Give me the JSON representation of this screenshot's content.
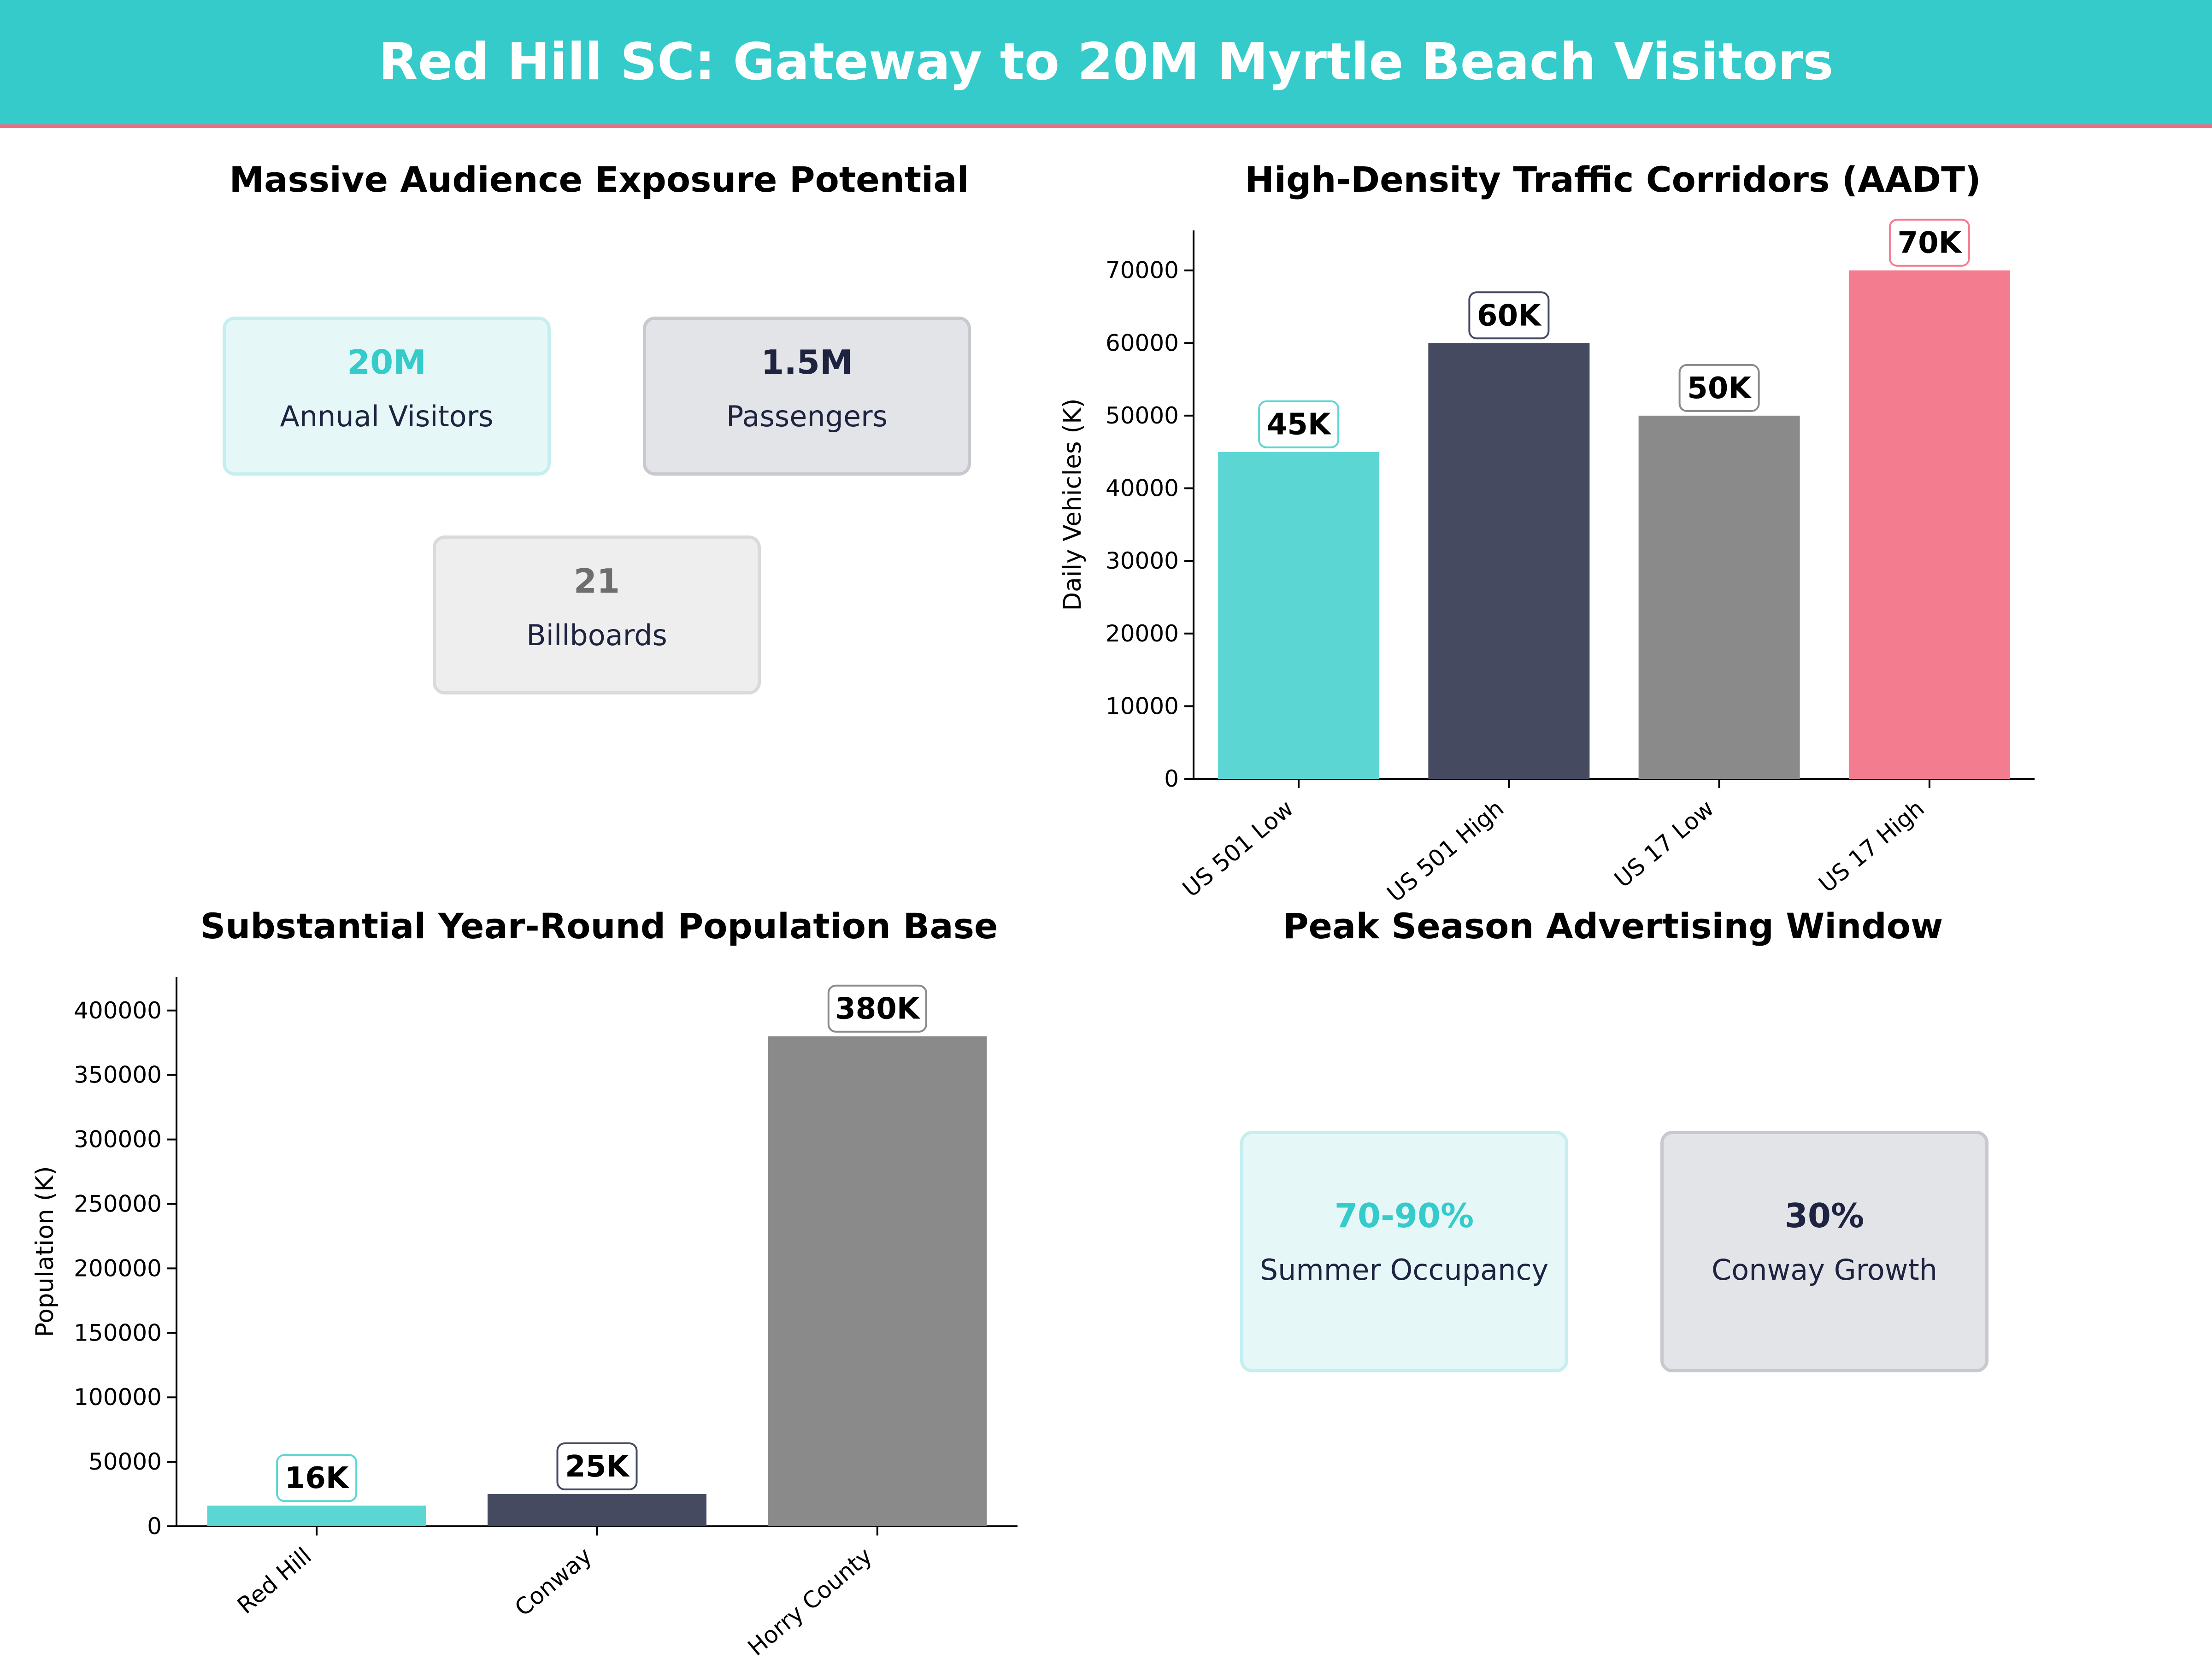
{
  "header": {
    "title": "Red Hill SC: Gateway to 20M Myrtle Beach Visitors"
  },
  "colors": {
    "header_bg": "#35cbcb",
    "header_accent": "#f06a82",
    "teal": "#5bd6d3",
    "navy": "#454a60",
    "gray": "#8a8a8a",
    "pink": "#f47c8f"
  },
  "panels": {
    "exposure": {
      "title": "Massive Audience Exposure Potential",
      "cards": [
        {
          "value": "20M",
          "label": "Annual Visitors",
          "color": "#35cbcb"
        },
        {
          "value": "1.5M",
          "label": "Passengers",
          "color": "#1e2340"
        },
        {
          "value": "21",
          "label": "Billboards",
          "color": "#6e6e6e"
        }
      ]
    },
    "traffic": {
      "title": "High-Density Traffic Corridors (AADT)"
    },
    "population": {
      "title": "Substantial Year-Round Population Base"
    },
    "season": {
      "title": "Peak Season Advertising Window",
      "cards": [
        {
          "value": "70-90%",
          "label": "Summer Occupancy",
          "color": "#35cbcb"
        },
        {
          "value": "30%",
          "label": "Conway Growth",
          "color": "#1e2340"
        }
      ]
    }
  },
  "chart_data": [
    {
      "type": "bar",
      "title": "High-Density Traffic Corridors (AADT)",
      "categories": [
        "US 501 Low",
        "US 501 High",
        "US 17 Low",
        "US 17 High"
      ],
      "values": [
        45000,
        60000,
        50000,
        70000
      ],
      "data_labels": [
        "45K",
        "60K",
        "50K",
        "70K"
      ],
      "colors": [
        "#5bd6d3",
        "#454a60",
        "#8a8a8a",
        "#f47c8f"
      ],
      "xlabel": "",
      "ylabel": "Daily Vehicles (K)",
      "ylim": [
        0,
        75500
      ],
      "yticks": [
        0,
        10000,
        20000,
        30000,
        40000,
        50000,
        60000,
        70000
      ],
      "grid": false
    },
    {
      "type": "bar",
      "title": "Substantial Year-Round Population Base",
      "categories": [
        "Red Hill",
        "Conway",
        "Horry County"
      ],
      "values": [
        16000,
        25000,
        380000
      ],
      "data_labels": [
        "16K",
        "25K",
        "380K"
      ],
      "colors": [
        "#5bd6d3",
        "#454a60",
        "#8a8a8a"
      ],
      "xlabel": "",
      "ylabel": "Population (K)",
      "ylim": [
        0,
        426000
      ],
      "yticks": [
        0,
        50000,
        100000,
        150000,
        200000,
        250000,
        300000,
        350000,
        400000
      ],
      "grid": false
    }
  ]
}
